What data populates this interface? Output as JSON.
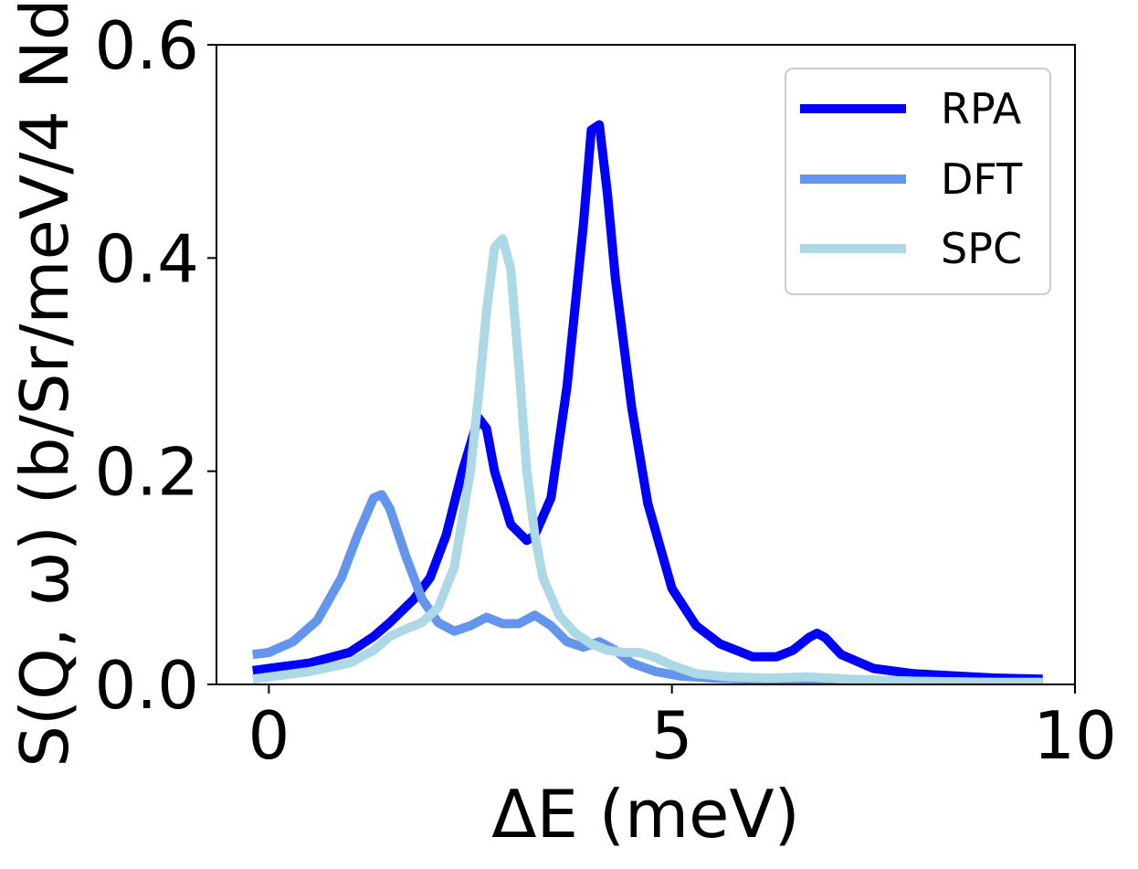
{
  "chart_data": {
    "type": "line",
    "title": "",
    "xlabel": "ΔE (meV)",
    "ylabel": "S(Q, ω) (b/Sr/meV/4 Nd)",
    "xlim": [
      -0.65,
      10
    ],
    "ylim": [
      0,
      0.6
    ],
    "xticks": [
      0,
      5,
      10
    ],
    "xtick_labels": [
      "0",
      "5",
      "10"
    ],
    "yticks": [
      0.0,
      0.2,
      0.4,
      0.6
    ],
    "ytick_labels": [
      "0.0",
      "0.2",
      "0.4",
      "0.6"
    ],
    "grid": false,
    "legend_position": "top-right",
    "series": [
      {
        "name": "RPA",
        "color": "#0000ff",
        "x": [
          -0.2,
          0.0,
          0.5,
          1.0,
          1.3,
          1.5,
          1.8,
          2.0,
          2.2,
          2.4,
          2.6,
          2.7,
          2.8,
          3.0,
          3.2,
          3.3,
          3.5,
          3.7,
          3.9,
          4.0,
          4.1,
          4.2,
          4.3,
          4.5,
          4.7,
          5.0,
          5.3,
          5.6,
          6.0,
          6.3,
          6.5,
          6.7,
          6.8,
          6.9,
          7.1,
          7.5,
          8.0,
          9.0,
          9.6
        ],
        "y": [
          0.013,
          0.015,
          0.02,
          0.03,
          0.045,
          0.058,
          0.08,
          0.1,
          0.14,
          0.2,
          0.25,
          0.24,
          0.2,
          0.15,
          0.135,
          0.14,
          0.175,
          0.28,
          0.43,
          0.52,
          0.525,
          0.46,
          0.38,
          0.26,
          0.17,
          0.09,
          0.055,
          0.038,
          0.026,
          0.026,
          0.032,
          0.044,
          0.048,
          0.044,
          0.028,
          0.015,
          0.01,
          0.006,
          0.005
        ]
      },
      {
        "name": "DFT",
        "color": "#6495ed",
        "x": [
          -0.2,
          0.0,
          0.3,
          0.6,
          0.9,
          1.1,
          1.3,
          1.4,
          1.5,
          1.7,
          1.9,
          2.1,
          2.3,
          2.5,
          2.7,
          2.9,
          3.1,
          3.3,
          3.5,
          3.7,
          3.9,
          4.1,
          4.3,
          4.5,
          4.8,
          5.1,
          5.5,
          6.0,
          6.5,
          7.0,
          8.0,
          9.0,
          9.6
        ],
        "y": [
          0.028,
          0.03,
          0.04,
          0.06,
          0.1,
          0.14,
          0.175,
          0.178,
          0.165,
          0.12,
          0.08,
          0.058,
          0.05,
          0.055,
          0.063,
          0.057,
          0.057,
          0.065,
          0.055,
          0.04,
          0.035,
          0.04,
          0.032,
          0.02,
          0.012,
          0.008,
          0.006,
          0.005,
          0.005,
          0.005,
          0.003,
          0.002,
          0.002
        ]
      },
      {
        "name": "SPC",
        "color": "#add8e6",
        "x": [
          -0.2,
          0.0,
          0.5,
          1.0,
          1.3,
          1.5,
          1.7,
          1.9,
          2.1,
          2.3,
          2.5,
          2.6,
          2.7,
          2.8,
          2.9,
          3.0,
          3.1,
          3.2,
          3.3,
          3.4,
          3.6,
          3.8,
          4.0,
          4.2,
          4.4,
          4.6,
          4.8,
          5.0,
          5.3,
          5.7,
          6.2,
          6.7,
          7.2,
          8.0,
          9.0,
          9.6
        ],
        "y": [
          0.005,
          0.007,
          0.012,
          0.02,
          0.032,
          0.045,
          0.052,
          0.058,
          0.072,
          0.11,
          0.2,
          0.27,
          0.35,
          0.41,
          0.418,
          0.39,
          0.3,
          0.2,
          0.14,
          0.1,
          0.065,
          0.048,
          0.038,
          0.032,
          0.03,
          0.03,
          0.025,
          0.018,
          0.01,
          0.007,
          0.006,
          0.007,
          0.005,
          0.003,
          0.002,
          0.002
        ]
      }
    ]
  }
}
